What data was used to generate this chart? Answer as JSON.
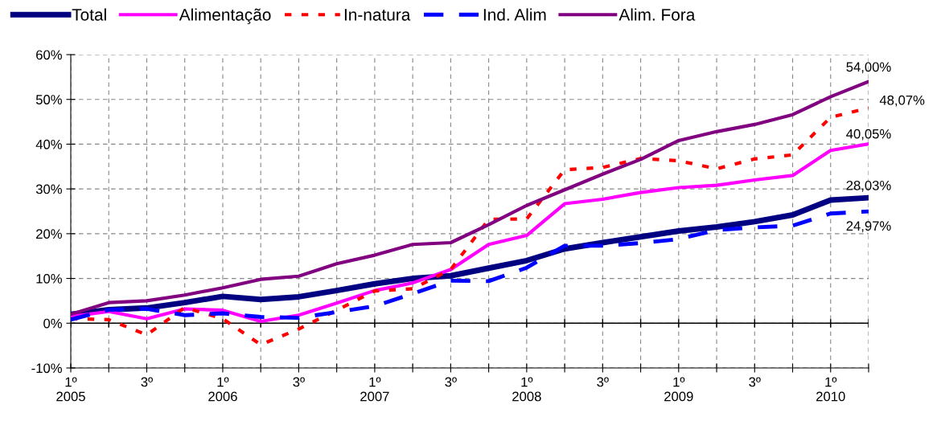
{
  "chart_data": {
    "type": "line",
    "categories": [
      "1º\n2005",
      null,
      "3º",
      null,
      "1º\n2006",
      null,
      "3º",
      null,
      "1º\n2007",
      null,
      "3º",
      null,
      "1º\n2008",
      null,
      "3º",
      null,
      "1º\n2009",
      null,
      "3º",
      null,
      "1º\n2010",
      null
    ],
    "series": [
      {
        "name": "Total",
        "color": "#000080",
        "line_style": "solid",
        "values": [
          2.0,
          3.0,
          3.4,
          4.6,
          6.0,
          5.3,
          5.9,
          7.3,
          8.8,
          10.0,
          10.6,
          12.3,
          14.0,
          16.6,
          18.0,
          19.3,
          20.6,
          21.5,
          22.7,
          24.2,
          27.5,
          28.03
        ],
        "value_labels": [
          null,
          null,
          null,
          null,
          null,
          null,
          null,
          null,
          null,
          null,
          null,
          null,
          null,
          null,
          null,
          null,
          null,
          null,
          null,
          null,
          null,
          "28,03%"
        ]
      },
      {
        "name": "Alimentação",
        "color": "#ff00ff",
        "line_style": "solid",
        "values": [
          1.5,
          2.6,
          1.0,
          3.2,
          2.9,
          0.4,
          1.8,
          4.5,
          7.3,
          9.0,
          12.0,
          17.6,
          19.6,
          26.7,
          27.7,
          29.2,
          30.3,
          30.8,
          32.0,
          33.0,
          38.6,
          40.05
        ],
        "value_labels": [
          null,
          null,
          null,
          null,
          null,
          null,
          null,
          null,
          null,
          null,
          null,
          null,
          null,
          null,
          null,
          null,
          null,
          null,
          null,
          null,
          null,
          "40,05%"
        ]
      },
      {
        "name": "In-natura",
        "color": "#ff0000",
        "line_style": "dotted",
        "values": [
          1.0,
          0.8,
          -2.6,
          3.5,
          1.0,
          -4.8,
          -1.3,
          2.9,
          7.2,
          7.7,
          12.0,
          23.2,
          23.3,
          34.3,
          34.8,
          36.8,
          36.3,
          34.5,
          36.7,
          37.6,
          46.0,
          48.07
        ],
        "value_labels": [
          null,
          null,
          null,
          null,
          null,
          null,
          null,
          null,
          null,
          null,
          null,
          null,
          null,
          null,
          null,
          null,
          null,
          null,
          null,
          null,
          null,
          "48,07%"
        ]
      },
      {
        "name": "Ind. Alim",
        "color": "#0000ff",
        "line_style": "dashed",
        "values": [
          0.8,
          3.0,
          3.2,
          1.8,
          2.2,
          1.4,
          1.2,
          2.5,
          3.8,
          6.6,
          9.5,
          9.4,
          12.4,
          17.3,
          17.3,
          17.9,
          18.8,
          20.8,
          21.4,
          21.8,
          24.5,
          24.97
        ],
        "value_labels": [
          null,
          null,
          null,
          null,
          null,
          null,
          null,
          null,
          null,
          null,
          null,
          null,
          null,
          null,
          null,
          null,
          null,
          null,
          null,
          null,
          null,
          "24,97%"
        ]
      },
      {
        "name": "Alim. Fora",
        "color": "#800080",
        "line_style": "solid",
        "values": [
          2.0,
          4.6,
          5.0,
          6.3,
          7.9,
          9.8,
          10.5,
          13.3,
          15.2,
          17.6,
          18.0,
          22.0,
          26.3,
          29.8,
          33.3,
          36.6,
          40.8,
          42.8,
          44.4,
          46.6,
          50.6,
          54.0
        ],
        "value_labels": [
          null,
          null,
          null,
          null,
          null,
          null,
          null,
          null,
          null,
          null,
          null,
          null,
          null,
          null,
          null,
          null,
          null,
          null,
          null,
          null,
          null,
          "54,00%"
        ]
      }
    ],
    "ylim": [
      -10,
      60
    ],
    "yticks": [
      {
        "value": -10,
        "label": "-10%"
      },
      {
        "value": 0,
        "label": "0%"
      },
      {
        "value": 10,
        "label": "10%"
      },
      {
        "value": 20,
        "label": "20%"
      },
      {
        "value": 30,
        "label": "30%"
      },
      {
        "value": 40,
        "label": "40%"
      },
      {
        "value": 50,
        "label": "50%"
      },
      {
        "value": 60,
        "label": "60%"
      }
    ],
    "grid": true,
    "legend": "top",
    "marker": "none"
  }
}
